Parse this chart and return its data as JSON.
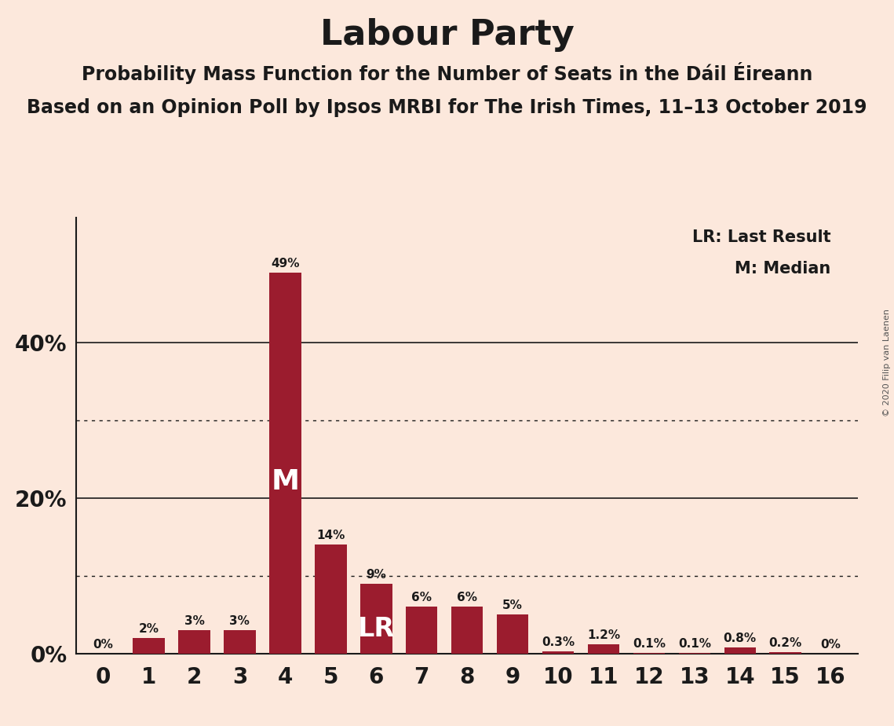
{
  "title": "Labour Party",
  "subtitle1": "Probability Mass Function for the Number of Seats in the Dáil Éireann",
  "subtitle2": "Based on an Opinion Poll by Ipsos MRBI for The Irish Times, 11–13 October 2019",
  "copyright": "© 2020 Filip van Laenen",
  "legend_lr": "LR: Last Result",
  "legend_m": "M: Median",
  "x_labels": [
    "0",
    "1",
    "2",
    "3",
    "4",
    "5",
    "6",
    "7",
    "8",
    "9",
    "10",
    "11",
    "12",
    "13",
    "14",
    "15",
    "16"
  ],
  "values": [
    0.0,
    0.02,
    0.03,
    0.03,
    0.49,
    0.14,
    0.09,
    0.06,
    0.06,
    0.05,
    0.003,
    0.012,
    0.001,
    0.001,
    0.008,
    0.002,
    0.0
  ],
  "bar_labels": [
    "0%",
    "2%",
    "3%",
    "3%",
    "49%",
    "14%",
    "9%",
    "6%",
    "6%",
    "5%",
    "0.3%",
    "1.2%",
    "0.1%",
    "0.1%",
    "0.8%",
    "0.2%",
    "0%"
  ],
  "median_bar": 4,
  "lr_bar": 6,
  "bar_color": "#9b1c2e",
  "background_color": "#fce8dc",
  "title_fontsize": 32,
  "subtitle_fontsize": 17,
  "ytick_values": [
    0.0,
    0.2,
    0.4
  ],
  "ytick_labels": [
    "0%",
    "20%",
    "40%"
  ],
  "dotted_grid": [
    0.1,
    0.3
  ],
  "solid_grid": [
    0.2,
    0.4
  ],
  "ylim": [
    0,
    0.56
  ],
  "legend_lr_fontsize": 15,
  "legend_m_fontsize": 15
}
